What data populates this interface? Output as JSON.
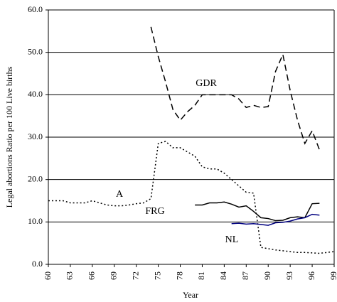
{
  "chart_data": {
    "type": "line",
    "ylabel": "Legal abortions Ratio per 100 Live births",
    "xlabel": "Year",
    "xlim": [
      60,
      99
    ],
    "xticks": [
      60,
      63,
      66,
      69,
      72,
      75,
      78,
      81,
      84,
      87,
      90,
      93,
      96,
      99
    ],
    "ylim": [
      0,
      60
    ],
    "yticks": [
      {
        "value": 0,
        "label": "0.0"
      },
      {
        "value": 10,
        "label": "10.0"
      },
      {
        "value": 20,
        "label": "20.0"
      },
      {
        "value": 30,
        "label": "30.0"
      },
      {
        "value": 40,
        "label": "40.0"
      },
      {
        "value": 50,
        "label": "50.0"
      },
      {
        "value": 60,
        "label": "60.0"
      }
    ],
    "grid": true,
    "series": [
      {
        "name": "GDR",
        "color": "#000000",
        "dash": "dashed",
        "x": [
          74,
          75,
          76,
          77,
          78,
          79,
          80,
          81,
          82,
          83,
          84,
          85,
          86,
          87,
          88,
          89,
          90,
          91,
          92,
          93,
          94,
          95,
          96,
          97
        ],
        "values": [
          56,
          49,
          43,
          36.5,
          34,
          36,
          37.5,
          40,
          40,
          40,
          40,
          40,
          39,
          37,
          37.5,
          37,
          37.2,
          45.5,
          49.5,
          41,
          34,
          28.5,
          31.5,
          27
        ]
      },
      {
        "name": "A",
        "color": "#000000",
        "dash": "dotted",
        "x": [
          60,
          61,
          62,
          63,
          64,
          65,
          66,
          67,
          68,
          69,
          70,
          71,
          72,
          73,
          74,
          75,
          76,
          77,
          78,
          79,
          80,
          81,
          82,
          83,
          84,
          85,
          86,
          87,
          88,
          89,
          90,
          91,
          92,
          93,
          94,
          95,
          96,
          97,
          98,
          99
        ],
        "values": [
          15,
          15,
          15,
          14.5,
          14.5,
          14.5,
          15,
          14.5,
          14,
          13.8,
          13.8,
          14,
          14.3,
          14.5,
          15.5,
          28.5,
          29,
          27.5,
          27.5,
          26.5,
          25.5,
          23,
          22.5,
          22.5,
          21.5,
          20,
          18.5,
          17,
          16.8,
          4,
          3.7,
          3.4,
          3.2,
          3,
          2.8,
          2.8,
          2.7,
          2.6,
          2.8,
          3
        ]
      },
      {
        "name": "FRG",
        "color": "#000000",
        "dash": "solid",
        "x": [
          80,
          81,
          82,
          83,
          84,
          85,
          86,
          87,
          88,
          89,
          90,
          91,
          92,
          93,
          94,
          95,
          96,
          97
        ],
        "values": [
          14,
          14,
          14.5,
          14.5,
          14.7,
          14.2,
          13.5,
          13.8,
          12.5,
          11,
          10.8,
          10.3,
          10.4,
          11,
          11.2,
          11,
          14.3,
          14.4
        ]
      },
      {
        "name": "NL",
        "color": "#000080",
        "dash": "solid",
        "x": [
          85,
          86,
          87,
          88,
          89,
          90,
          91,
          92,
          93,
          94,
          95,
          96,
          97
        ],
        "values": [
          9.6,
          9.7,
          9.5,
          9.6,
          9.4,
          9.2,
          9.8,
          9.9,
          10.2,
          10.7,
          11,
          11.8,
          11.6
        ]
      }
    ]
  }
}
